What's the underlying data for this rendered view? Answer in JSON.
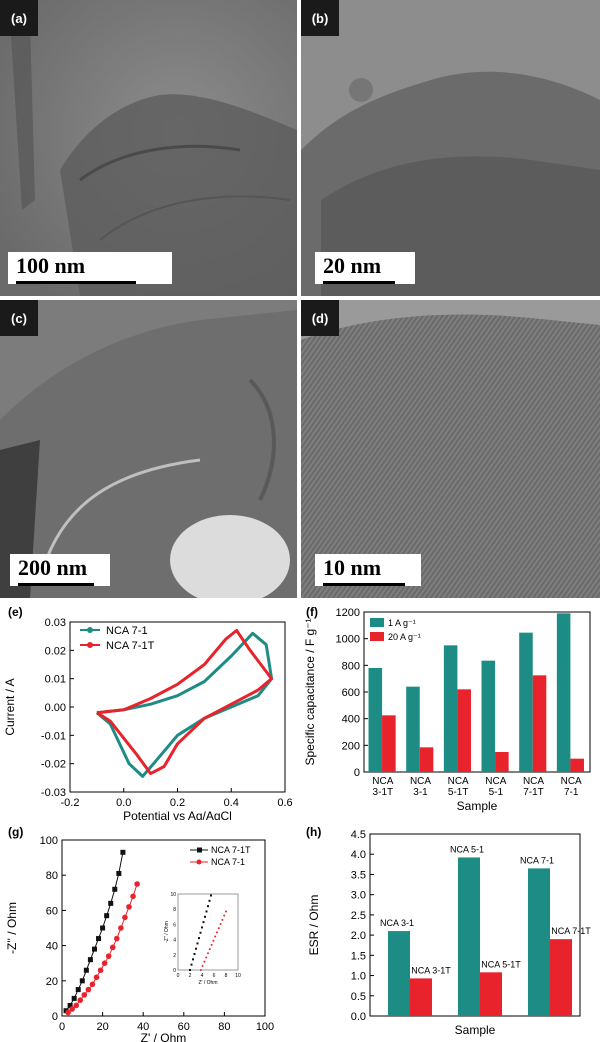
{
  "tem_panels": [
    {
      "label": "(a)",
      "scale": "100 nm"
    },
    {
      "label": "(b)",
      "scale": "20 nm"
    },
    {
      "label": "(c)",
      "scale": "200 nm"
    },
    {
      "label": "(d)",
      "scale": "10 nm"
    }
  ],
  "chart_data": [
    {
      "panel": "(e)",
      "type": "line",
      "xlabel": "Potential vs Ag/AgCl",
      "ylabel": "Current / A",
      "xlim": [
        -0.2,
        0.6
      ],
      "ylim": [
        -0.03,
        0.03
      ],
      "xticks": [
        "-0.2",
        "0.0",
        "0.2",
        "0.4",
        "0.6"
      ],
      "yticks": [
        "-0.03",
        "-0.02",
        "-0.01",
        "0.00",
        "0.01",
        "0.02",
        "0.03"
      ],
      "legend": "top-left",
      "series": [
        {
          "name": "NCA 7-1",
          "color": "#1c8c85",
          "x": [
            -0.1,
            0.0,
            0.1,
            0.2,
            0.3,
            0.4,
            0.48,
            0.53,
            0.55,
            0.5,
            0.4,
            0.3,
            0.2,
            0.12,
            0.07,
            0.02,
            -0.05,
            -0.1
          ],
          "y": [
            -0.002,
            -0.001,
            0.001,
            0.004,
            0.009,
            0.018,
            0.026,
            0.022,
            0.01,
            0.004,
            0.0,
            -0.004,
            -0.01,
            -0.019,
            -0.0245,
            -0.02,
            -0.006,
            -0.002
          ]
        },
        {
          "name": "NCA 7-1T",
          "color": "#e8232b",
          "x": [
            -0.1,
            0.0,
            0.1,
            0.2,
            0.3,
            0.38,
            0.42,
            0.47,
            0.55,
            0.5,
            0.4,
            0.3,
            0.2,
            0.15,
            0.1,
            0.05,
            -0.05,
            -0.1
          ],
          "y": [
            -0.002,
            -0.001,
            0.003,
            0.008,
            0.015,
            0.024,
            0.027,
            0.02,
            0.01,
            0.006,
            0.001,
            -0.004,
            -0.013,
            -0.021,
            -0.0235,
            -0.017,
            -0.005,
            -0.002
          ]
        }
      ]
    },
    {
      "panel": "(f)",
      "type": "bar",
      "xlabel": "Sample",
      "ylabel": "Specific capacitance / F g⁻¹",
      "ylim": [
        0,
        1200
      ],
      "yticks": [
        "0",
        "200",
        "400",
        "600",
        "800",
        "1000",
        "1200"
      ],
      "legend": "top-left",
      "categories": [
        "NCA 3-1T",
        "NCA 3-1",
        "NCA 5-1T",
        "NCA 5-1",
        "NCA 7-1T",
        "NCA 7-1"
      ],
      "series": [
        {
          "name": "1 A g⁻¹",
          "color": "#1c8c85",
          "values": [
            780,
            640,
            950,
            835,
            1045,
            1190
          ]
        },
        {
          "name": "20 A g⁻¹",
          "color": "#e8232b",
          "values": [
            425,
            185,
            620,
            150,
            725,
            100
          ]
        }
      ]
    },
    {
      "panel": "(g)",
      "type": "scatter",
      "xlabel": "Z' / Ohm",
      "ylabel": "-Z'' / Ohm",
      "xlim": [
        0,
        100
      ],
      "ylim": [
        0,
        100
      ],
      "xticks": [
        "0",
        "20",
        "40",
        "60",
        "80",
        "100"
      ],
      "yticks": [
        "0",
        "20",
        "40",
        "60",
        "80",
        "100"
      ],
      "legend": "top-right",
      "series": [
        {
          "name": "NCA 7-1T",
          "color": "#111111",
          "x": [
            2,
            4,
            6,
            8,
            10,
            12,
            14,
            16,
            18,
            20,
            22,
            24,
            26,
            28,
            30
          ],
          "y": [
            3,
            6,
            10,
            15,
            20,
            26,
            32,
            38,
            44,
            50,
            57,
            64,
            72,
            81,
            93
          ]
        },
        {
          "name": "NCA 7-1",
          "color": "#e8232b",
          "x": [
            3,
            5,
            7,
            9,
            11,
            13,
            15,
            17,
            19,
            21,
            23,
            25,
            27,
            29,
            31,
            33,
            35,
            37
          ],
          "y": [
            2,
            4,
            6,
            9,
            12,
            15,
            18,
            22,
            26,
            30,
            34,
            39,
            44,
            50,
            56,
            62,
            68,
            75
          ]
        }
      ],
      "inset": {
        "xlabel": "Z' / Ohm",
        "ylabel": "-Z'' / Ohm",
        "xticks": [
          "0",
          "2",
          "4",
          "6",
          "8",
          "10"
        ],
        "yticks": [
          "0",
          "2",
          "4",
          "6",
          "8",
          "10"
        ]
      }
    },
    {
      "panel": "(h)",
      "type": "bar",
      "xlabel": "Sample",
      "ylabel": "ESR / Ohm",
      "ylim": [
        0,
        4.5
      ],
      "yticks": [
        "0.0",
        "0.5",
        "1.0",
        "1.5",
        "2.0",
        "2.5",
        "3.0",
        "3.5",
        "4.0",
        "4.5"
      ],
      "groups": [
        {
          "bars": [
            {
              "label": "NCA 3-1",
              "value": 2.1,
              "color": "#1c8c85"
            },
            {
              "label": "NCA 3-1T",
              "value": 0.93,
              "color": "#e8232b"
            }
          ]
        },
        {
          "bars": [
            {
              "label": "NCA 5-1",
              "value": 3.92,
              "color": "#1c8c85"
            },
            {
              "label": "NCA 5-1T",
              "value": 1.08,
              "color": "#e8232b"
            }
          ]
        },
        {
          "bars": [
            {
              "label": "NCA 7-1",
              "value": 3.65,
              "color": "#1c8c85"
            },
            {
              "label": "NCA 7-1T",
              "value": 1.9,
              "color": "#e8232b"
            }
          ]
        }
      ]
    }
  ]
}
